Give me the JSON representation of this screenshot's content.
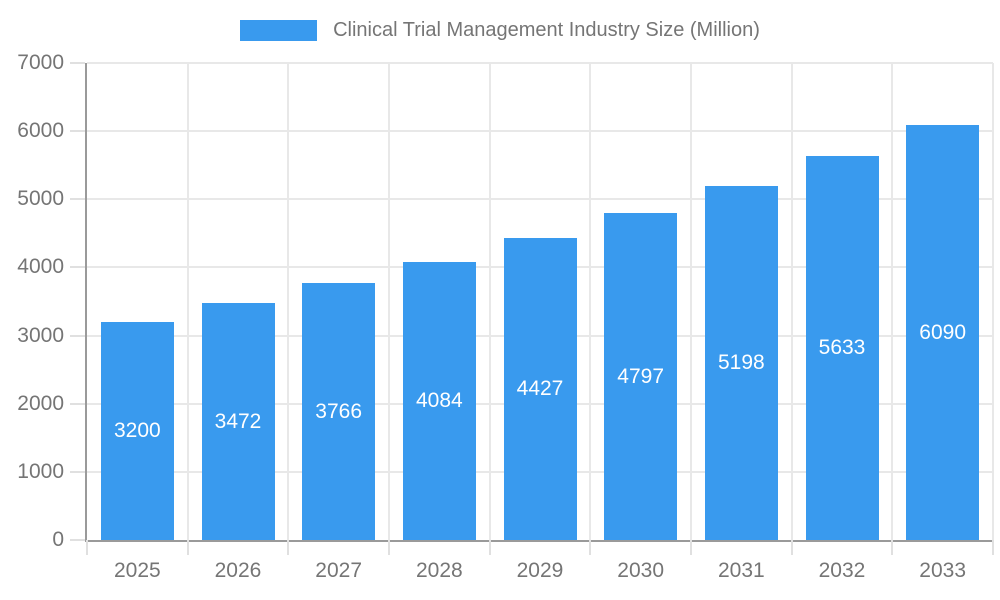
{
  "legend": {
    "label": "Clinical Trial Management Industry Size (Million)"
  },
  "chart_data": {
    "type": "bar",
    "title": "Clinical Trial Management Industry Size (Million)",
    "series_name": "Clinical Trial Management Industry Size (Million)",
    "categories": [
      "2025",
      "2026",
      "2027",
      "2028",
      "2029",
      "2030",
      "2031",
      "2032",
      "2033"
    ],
    "values": [
      3200,
      3472,
      3766,
      4084,
      4427,
      4797,
      5198,
      5633,
      6090
    ],
    "value_labels": [
      "3200",
      "3472",
      "3766",
      "4084",
      "4427",
      "4797",
      "5198",
      "5633",
      "6090"
    ],
    "xlabel": "",
    "ylabel": "",
    "ylim": [
      0,
      7000
    ],
    "ytick_step": 1000,
    "ytick_labels": [
      "0",
      "1000",
      "2000",
      "3000",
      "4000",
      "5000",
      "6000",
      "7000"
    ],
    "grid": true,
    "legend_position": "top",
    "bar_color": "#399aee",
    "axis_label_color": "#757575",
    "value_label_color": "#ffffff"
  }
}
